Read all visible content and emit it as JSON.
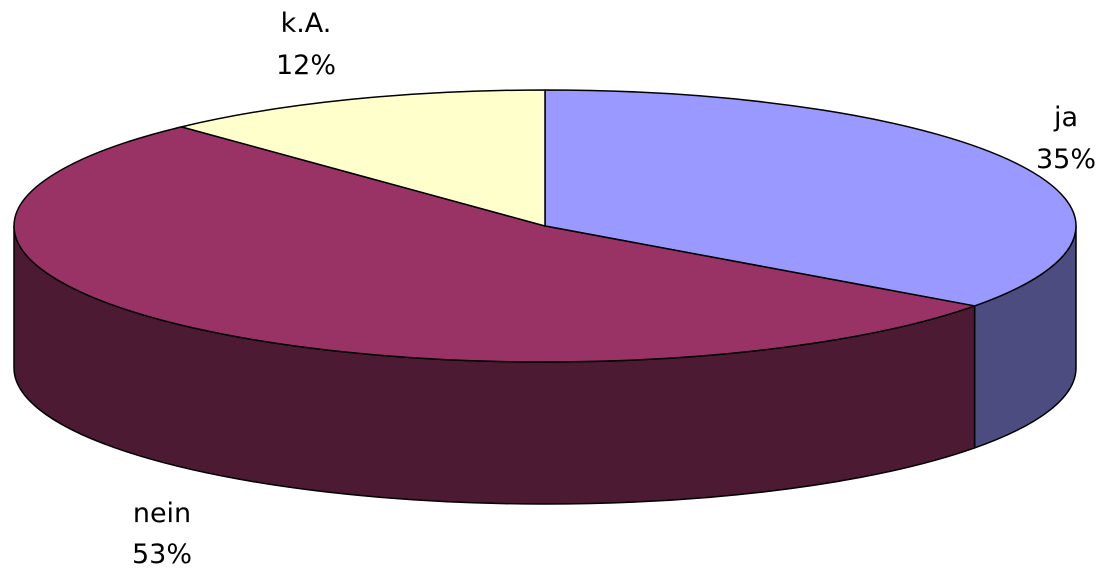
{
  "chart_data": {
    "type": "pie",
    "style": "3d",
    "slices": [
      {
        "label": "ja",
        "value": 35,
        "display": "35%",
        "color": "#9999ff",
        "side_color": "#4c4c80"
      },
      {
        "label": "nein",
        "value": 53,
        "display": "53%",
        "color": "#993366",
        "side_color": "#4d1a33"
      },
      {
        "label": "k.A.",
        "value": 12,
        "display": "12%",
        "color": "#ffffcc",
        "side_color": "#80806a"
      }
    ]
  }
}
